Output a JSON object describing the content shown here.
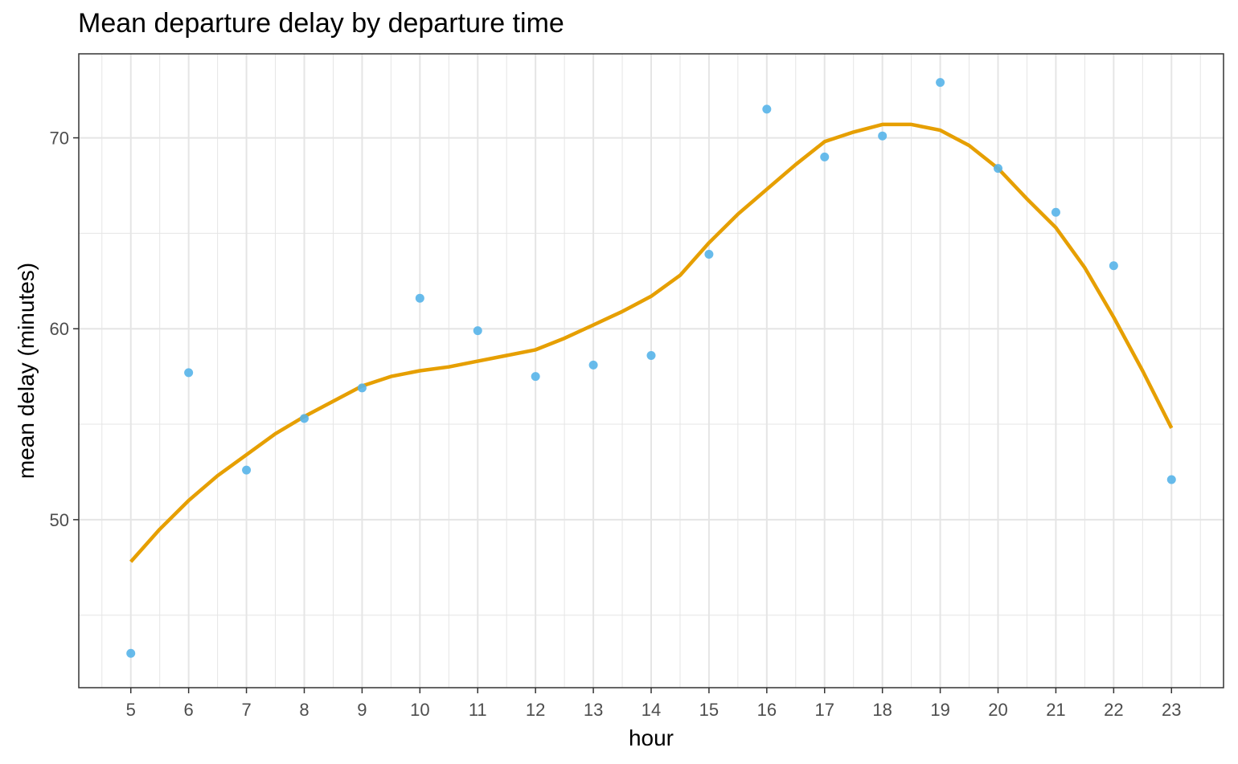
{
  "chart_data": {
    "type": "scatter",
    "title": "Mean departure delay by departure time",
    "xlabel": "hour",
    "ylabel": "mean delay (minutes)",
    "xlim": [
      4.1,
      23.9
    ],
    "ylim": [
      41.2,
      74.4
    ],
    "x_ticks": [
      5,
      6,
      7,
      8,
      9,
      10,
      11,
      12,
      13,
      14,
      15,
      16,
      17,
      18,
      19,
      20,
      21,
      22,
      23
    ],
    "y_ticks": [
      50,
      60,
      70
    ],
    "grid": true,
    "legend": "none",
    "colors": {
      "points": "#56B4E9",
      "smooth": "#E69F00",
      "grid": "#e5e5e5",
      "border": "#333333"
    },
    "series": [
      {
        "type": "scatter",
        "x": [
          5,
          6,
          7,
          8,
          9,
          10,
          11,
          12,
          13,
          14,
          15,
          16,
          17,
          18,
          19,
          20,
          21,
          22,
          23
        ],
        "values": [
          43.0,
          57.7,
          52.6,
          55.3,
          56.9,
          61.6,
          59.9,
          57.5,
          58.1,
          58.6,
          63.9,
          71.5,
          69.0,
          70.1,
          72.9,
          68.4,
          66.1,
          63.3,
          52.1
        ]
      },
      {
        "type": "line",
        "x": [
          5,
          5.5,
          6,
          6.5,
          7,
          7.5,
          8,
          8.5,
          9,
          9.5,
          10,
          10.5,
          11,
          11.5,
          12,
          12.5,
          13,
          13.5,
          14,
          14.5,
          15,
          15.5,
          16,
          16.5,
          17,
          17.5,
          18,
          18.5,
          19,
          19.5,
          20,
          20.5,
          21,
          21.5,
          22,
          22.5,
          23
        ],
        "values": [
          47.8,
          49.5,
          51.0,
          52.3,
          53.4,
          54.5,
          55.4,
          56.2,
          57.0,
          57.5,
          57.8,
          58.0,
          58.3,
          58.6,
          58.9,
          59.5,
          60.2,
          60.9,
          61.7,
          62.8,
          64.5,
          66.0,
          67.3,
          68.6,
          69.8,
          70.3,
          70.7,
          70.7,
          70.4,
          69.6,
          68.4,
          66.8,
          65.3,
          63.2,
          60.6,
          57.8,
          54.8
        ]
      }
    ]
  }
}
